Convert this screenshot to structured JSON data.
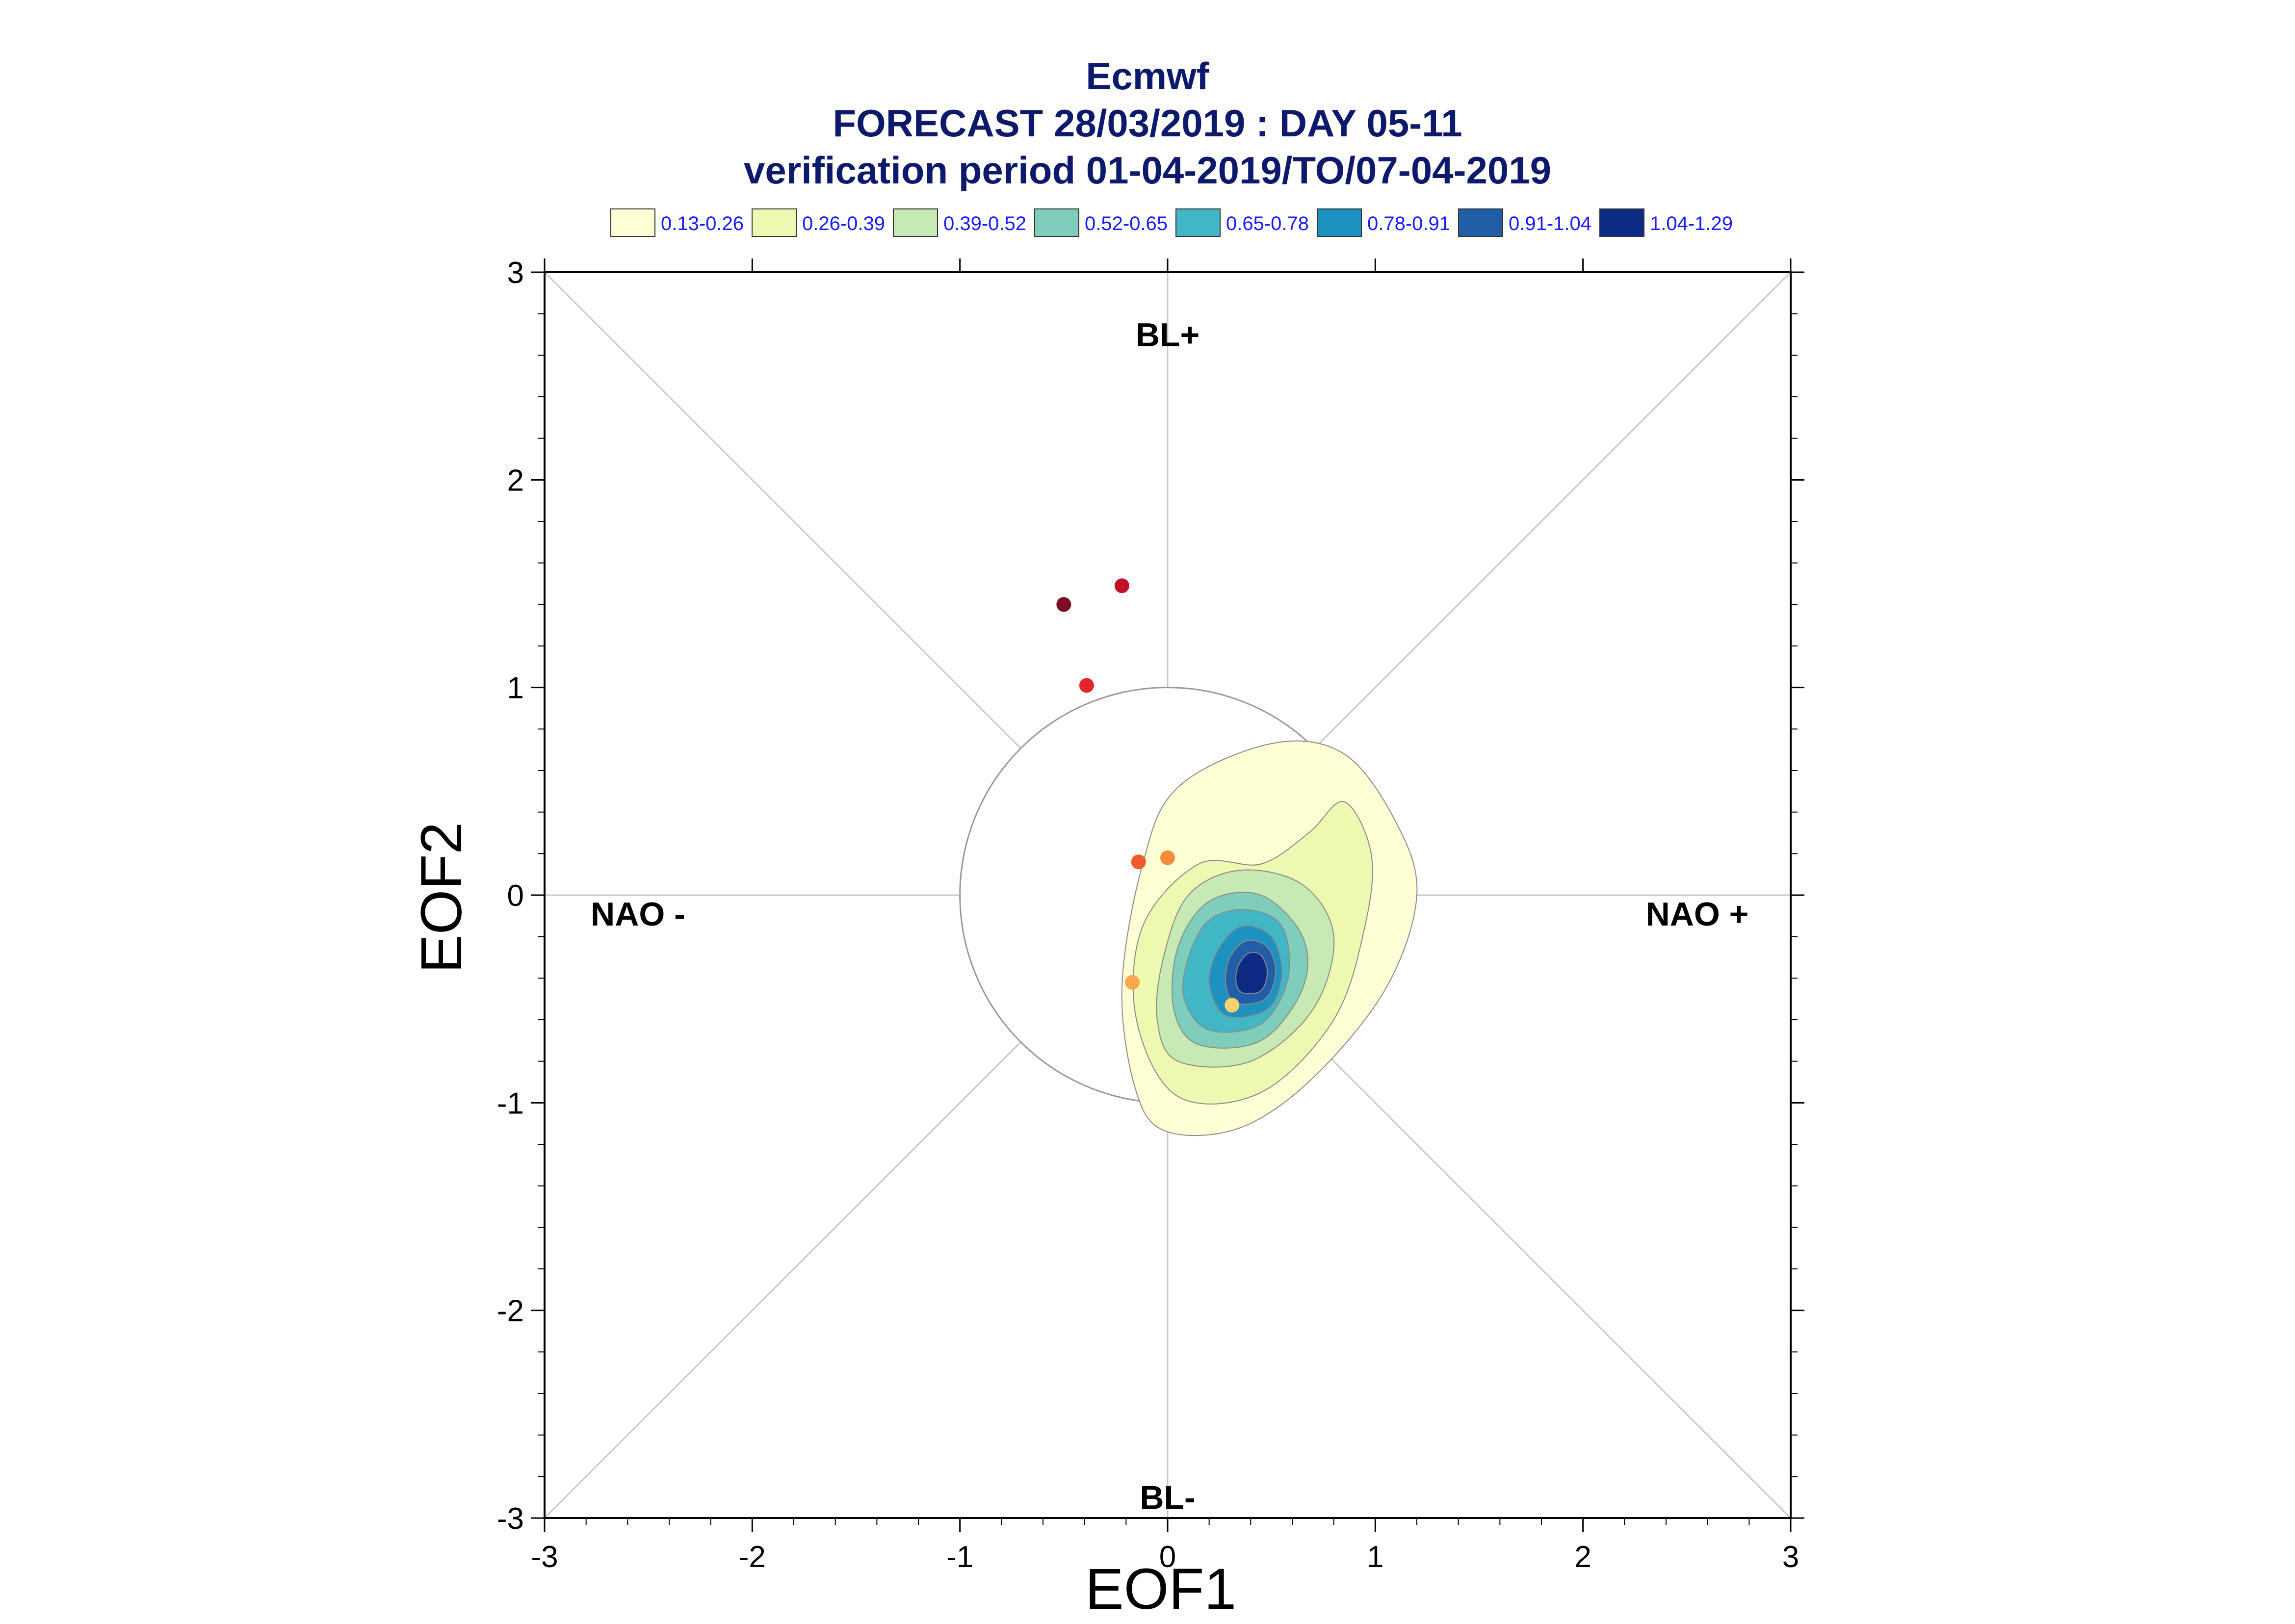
{
  "titles": {
    "line1": "Ecmwf",
    "line2": "FORECAST 28/03/2019 : DAY 05-11",
    "line3": "verification period 01-04-2019/TO/07-04-2019"
  },
  "chart_data": {
    "type": "scatter",
    "xlabel": "EOF1",
    "ylabel": "EOF2",
    "xlim": [
      -3,
      3
    ],
    "ylim": [
      -3,
      3
    ],
    "xticks": [
      "-3",
      "-2",
      "-1",
      "0",
      "1",
      "2",
      "3"
    ],
    "yticks": [
      "-3",
      "-2",
      "-1",
      "0",
      "1",
      "2",
      "3"
    ],
    "grid": false,
    "reference_circle_radius": 1,
    "regime_labels": [
      {
        "text": "BL+",
        "x": 0,
        "y": 2.7
      },
      {
        "text": "BL-",
        "x": 0,
        "y": -2.9
      },
      {
        "text": "NAO -",
        "x": -2.55,
        "y": -0.09
      },
      {
        "text": "NAO +",
        "x": 2.55,
        "y": -0.09
      }
    ],
    "legend": [
      {
        "label": "0.13-0.26",
        "color": "#ffffd6"
      },
      {
        "label": "0.26-0.39",
        "color": "#edf8b1"
      },
      {
        "label": "0.39-0.52",
        "color": "#c7e9b4"
      },
      {
        "label": "0.52-0.65",
        "color": "#7fcdbb"
      },
      {
        "label": "0.65-0.78",
        "color": "#41b6c4"
      },
      {
        "label": "0.78-0.91",
        "color": "#1d91c0"
      },
      {
        "label": "0.91-1.04",
        "color": "#225ea8"
      },
      {
        "label": "1.04-1.29",
        "color": "#0c2c84"
      }
    ],
    "density_contours": [
      {
        "level": "0.13-0.26",
        "center": [
          0.4,
          -0.4
        ],
        "points": [
          [
            0.0,
            -1.14
          ],
          [
            0.35,
            -1.12
          ],
          [
            0.7,
            -0.88
          ],
          [
            1.05,
            -0.45
          ],
          [
            1.2,
            0.0
          ],
          [
            1.1,
            0.35
          ],
          [
            0.85,
            0.68
          ],
          [
            0.5,
            0.73
          ],
          [
            0.05,
            0.52
          ],
          [
            -0.12,
            0.15
          ],
          [
            -0.22,
            -0.45
          ],
          [
            -0.15,
            -0.95
          ]
        ]
      },
      {
        "level": "0.26-0.39",
        "center": [
          0.4,
          -0.4
        ],
        "points": [
          [
            0.05,
            -0.97
          ],
          [
            0.45,
            -0.95
          ],
          [
            0.8,
            -0.6
          ],
          [
            0.95,
            -0.15
          ],
          [
            0.98,
            0.2
          ],
          [
            0.85,
            0.45
          ],
          [
            0.68,
            0.3
          ],
          [
            0.45,
            0.15
          ],
          [
            0.15,
            0.15
          ],
          [
            -0.12,
            -0.15
          ],
          [
            -0.15,
            -0.6
          ]
        ]
      },
      {
        "level": "0.39-0.52",
        "center": [
          0.4,
          -0.4
        ],
        "points": [
          [
            0.05,
            -0.8
          ],
          [
            0.4,
            -0.8
          ],
          [
            0.7,
            -0.55
          ],
          [
            0.8,
            -0.2
          ],
          [
            0.65,
            0.05
          ],
          [
            0.35,
            0.12
          ],
          [
            0.1,
            0.0
          ],
          [
            -0.02,
            -0.3
          ],
          [
            -0.05,
            -0.6
          ]
        ]
      },
      {
        "level": "0.52-0.65",
        "center": [
          0.4,
          -0.4
        ],
        "points": [
          [
            0.15,
            -0.72
          ],
          [
            0.45,
            -0.7
          ],
          [
            0.65,
            -0.45
          ],
          [
            0.65,
            -0.2
          ],
          [
            0.45,
            0.0
          ],
          [
            0.2,
            -0.03
          ],
          [
            0.05,
            -0.25
          ],
          [
            0.03,
            -0.55
          ]
        ]
      },
      {
        "level": "0.65-0.78",
        "center": [
          0.4,
          -0.4
        ],
        "points": [
          [
            0.2,
            -0.65
          ],
          [
            0.45,
            -0.62
          ],
          [
            0.58,
            -0.4
          ],
          [
            0.55,
            -0.15
          ],
          [
            0.38,
            -0.07
          ],
          [
            0.2,
            -0.12
          ],
          [
            0.1,
            -0.3
          ],
          [
            0.08,
            -0.5
          ]
        ]
      },
      {
        "level": "0.78-0.91",
        "center": [
          0.4,
          -0.4
        ],
        "points": [
          [
            0.28,
            -0.58
          ],
          [
            0.48,
            -0.55
          ],
          [
            0.55,
            -0.38
          ],
          [
            0.5,
            -0.2
          ],
          [
            0.36,
            -0.15
          ],
          [
            0.25,
            -0.25
          ],
          [
            0.2,
            -0.42
          ]
        ]
      },
      {
        "level": "0.91-1.04",
        "center": [
          0.4,
          -0.4
        ],
        "points": [
          [
            0.33,
            -0.52
          ],
          [
            0.47,
            -0.5
          ],
          [
            0.52,
            -0.37
          ],
          [
            0.48,
            -0.25
          ],
          [
            0.38,
            -0.22
          ],
          [
            0.3,
            -0.3
          ],
          [
            0.28,
            -0.43
          ]
        ]
      },
      {
        "level": "1.04-1.29",
        "center": [
          0.4,
          -0.4
        ],
        "points": [
          [
            0.36,
            -0.47
          ],
          [
            0.45,
            -0.46
          ],
          [
            0.48,
            -0.37
          ],
          [
            0.45,
            -0.29
          ],
          [
            0.39,
            -0.28
          ],
          [
            0.34,
            -0.34
          ],
          [
            0.33,
            -0.42
          ]
        ]
      }
    ],
    "points": [
      {
        "x": -0.5,
        "y": 1.4,
        "color": "#7a0e22"
      },
      {
        "x": -0.22,
        "y": 1.49,
        "color": "#c0102a"
      },
      {
        "x": -0.39,
        "y": 1.01,
        "color": "#e0262b"
      },
      {
        "x": -0.14,
        "y": 0.16,
        "color": "#f05a2c"
      },
      {
        "x": 0.0,
        "y": 0.18,
        "color": "#f78b3c"
      },
      {
        "x": -0.17,
        "y": -0.42,
        "color": "#faa74c"
      },
      {
        "x": 0.31,
        "y": -0.53,
        "color": "#fdd16a"
      }
    ]
  }
}
